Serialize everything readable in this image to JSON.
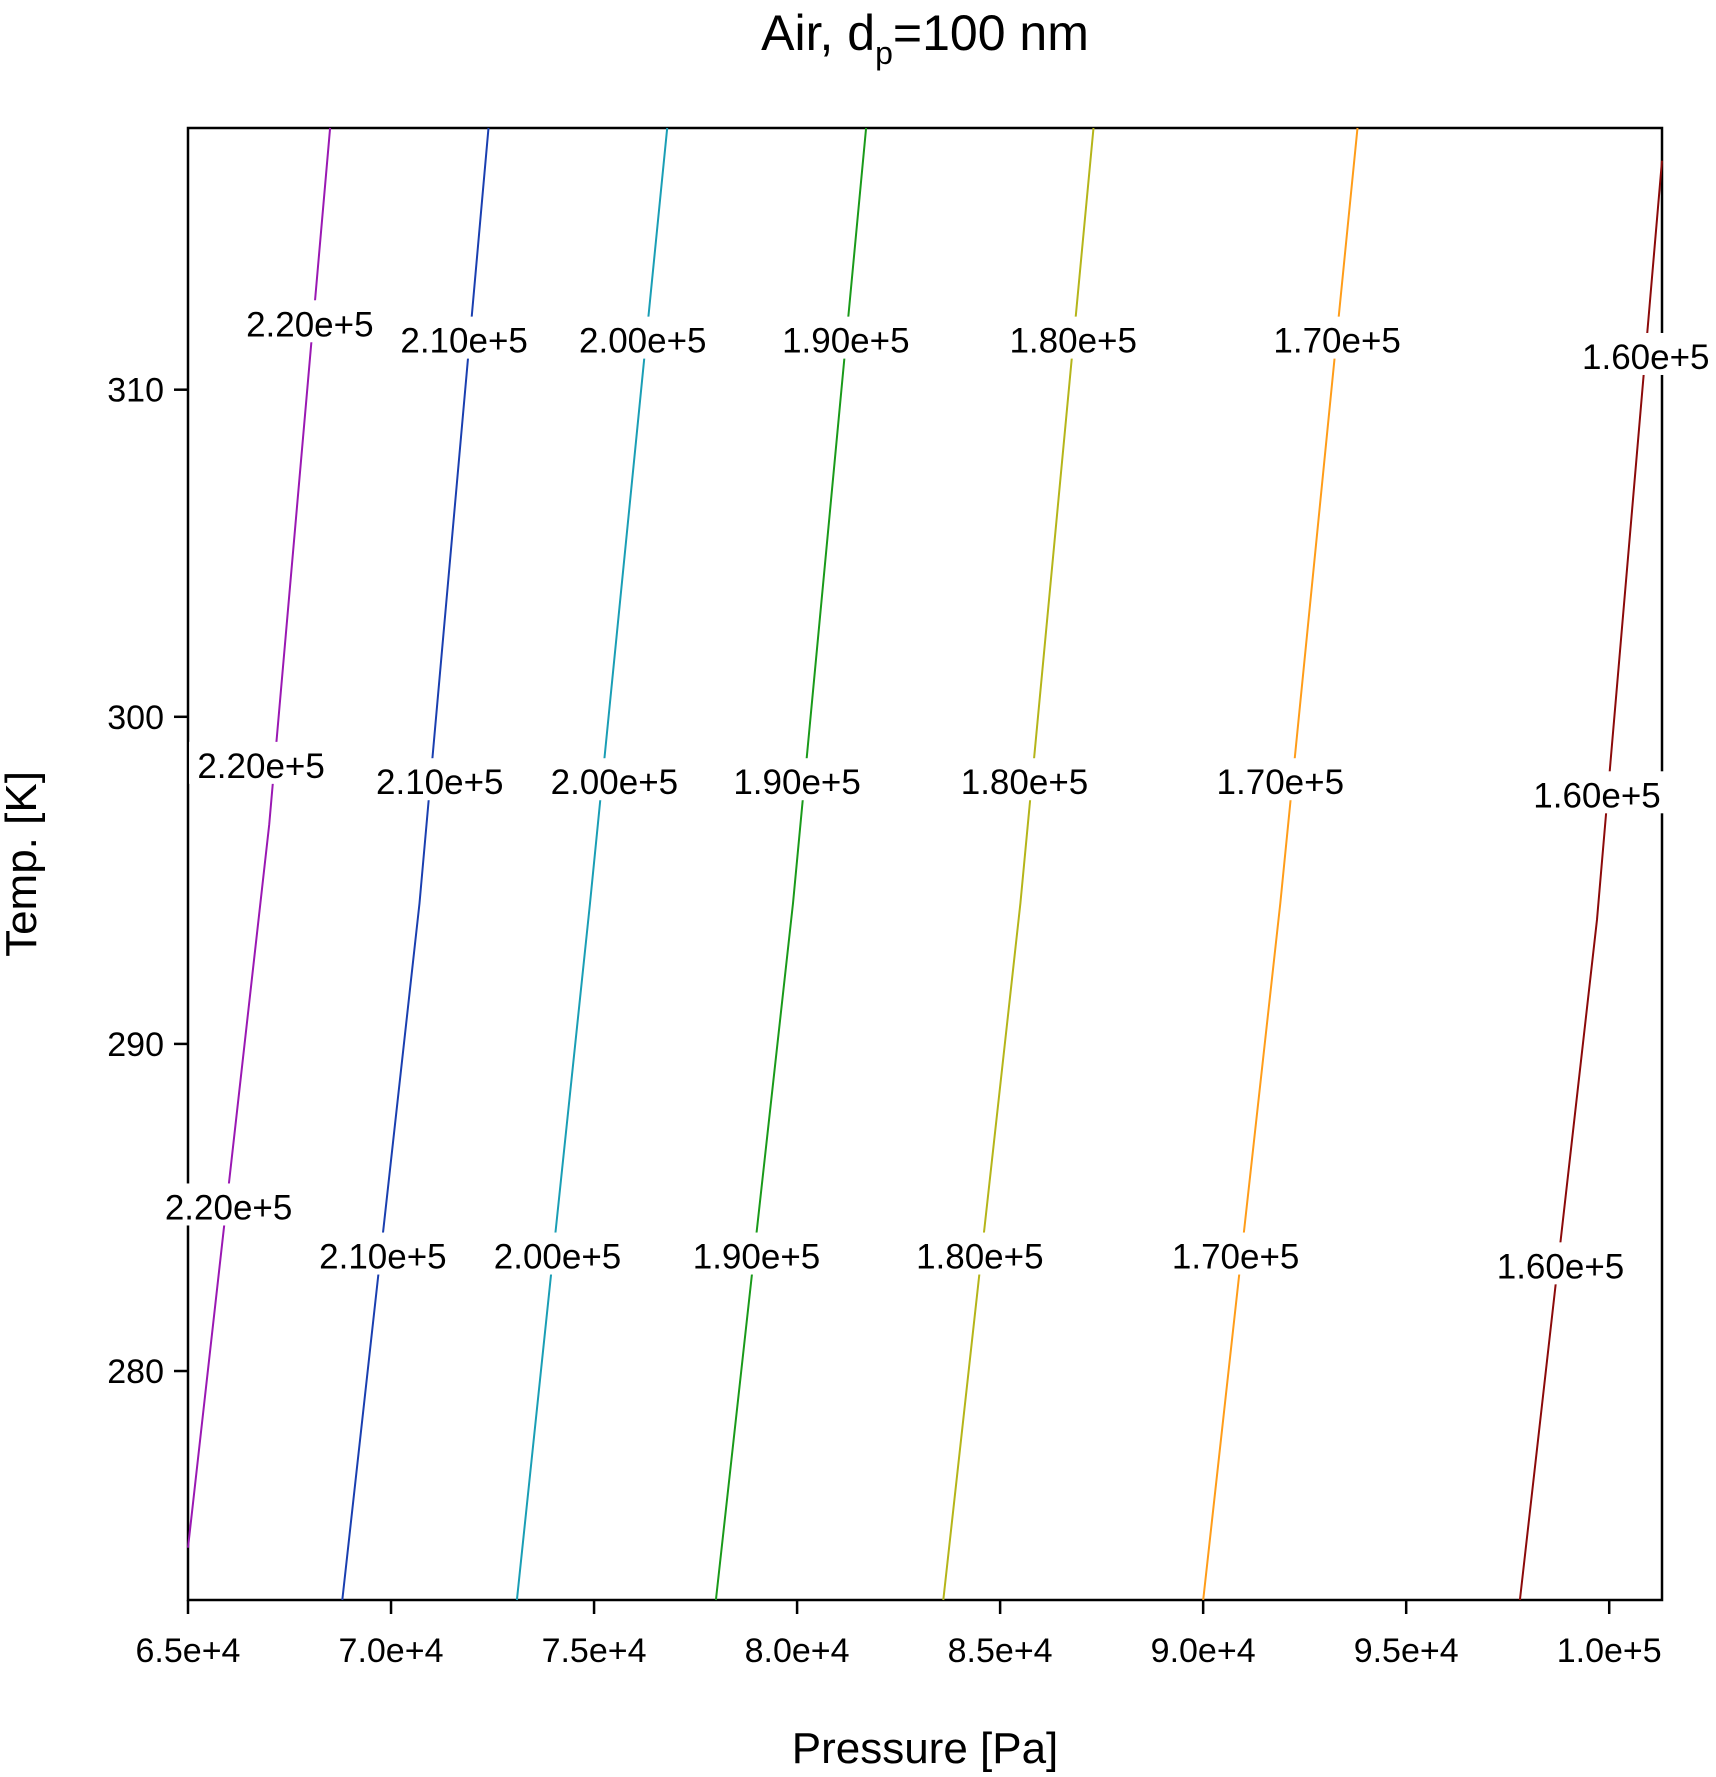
{
  "chart_data": {
    "type": "contour",
    "title": "Air, d",
    "title_subscript": "p",
    "title_suffix": "=100 nm",
    "xlabel": "Pressure [Pa]",
    "ylabel": "Temp. [K]",
    "xlim": [
      65000,
      101300
    ],
    "ylim": [
      273,
      318
    ],
    "xticks": [
      {
        "value": 65000,
        "label": "6.5e+4"
      },
      {
        "value": 70000,
        "label": "7.0e+4"
      },
      {
        "value": 75000,
        "label": "7.5e+4"
      },
      {
        "value": 80000,
        "label": "8.0e+4"
      },
      {
        "value": 85000,
        "label": "8.5e+4"
      },
      {
        "value": 90000,
        "label": "9.0e+4"
      },
      {
        "value": 95000,
        "label": "9.5e+4"
      },
      {
        "value": 100000,
        "label": "1.0e+5"
      }
    ],
    "yticks": [
      {
        "value": 280,
        "label": "280"
      },
      {
        "value": 290,
        "label": "290"
      },
      {
        "value": 300,
        "label": "300"
      },
      {
        "value": 310,
        "label": "310"
      }
    ],
    "grid": false,
    "series": [
      {
        "level": 220000,
        "label": "2.20e+5",
        "color": "#9a18b3",
        "points": [
          [
            65000,
            274.6
          ],
          [
            67000,
            296.7
          ],
          [
            68500,
            318
          ]
        ],
        "label_positions": [
          [
            66000,
            285
          ],
          [
            66800,
            298.5
          ],
          [
            68000,
            312
          ]
        ]
      },
      {
        "level": 210000,
        "label": "2.10e+5",
        "color": "#1a3fb0",
        "points": [
          [
            68800,
            273
          ],
          [
            70700,
            294.3
          ],
          [
            72400,
            318
          ]
        ],
        "label_positions": [
          [
            69800,
            283.5
          ],
          [
            71200,
            298
          ],
          [
            71800,
            311.5
          ]
        ]
      },
      {
        "level": 200000,
        "label": "2.00e+5",
        "color": "#1a9eb5",
        "points": [
          [
            73100,
            273
          ],
          [
            74900,
            294.3
          ],
          [
            76800,
            318
          ]
        ],
        "label_positions": [
          [
            74100,
            283.5
          ],
          [
            75500,
            298
          ],
          [
            76200,
            311.5
          ]
        ]
      },
      {
        "level": 190000,
        "label": "1.90e+5",
        "color": "#1a9a1a",
        "points": [
          [
            78000,
            273
          ],
          [
            79900,
            294.3
          ],
          [
            81700,
            318
          ]
        ],
        "label_positions": [
          [
            79000,
            283.5
          ],
          [
            80000,
            298
          ],
          [
            81200,
            311.5
          ]
        ]
      },
      {
        "level": 180000,
        "label": "1.80e+5",
        "color": "#b5b51a",
        "points": [
          [
            83600,
            273
          ],
          [
            85500,
            294.3
          ],
          [
            87300,
            318
          ]
        ],
        "label_positions": [
          [
            84500,
            283.5
          ],
          [
            85600,
            298
          ],
          [
            86800,
            311.5
          ]
        ]
      },
      {
        "level": 170000,
        "label": "1.70e+5",
        "color": "#ff9d1a",
        "points": [
          [
            90000,
            273
          ],
          [
            91900,
            294.3
          ],
          [
            93800,
            318
          ]
        ],
        "label_positions": [
          [
            90800,
            283.5
          ],
          [
            91900,
            298
          ],
          [
            93300,
            311.5
          ]
        ]
      },
      {
        "level": 160000,
        "label": "1.60e+5",
        "color": "#8b0a0a",
        "points": [
          [
            97800,
            273
          ],
          [
            99700,
            293.8
          ],
          [
            101300,
            317
          ]
        ],
        "label_positions": [
          [
            98800,
            283.2
          ],
          [
            99700,
            297.6
          ],
          [
            100900,
            311
          ]
        ]
      }
    ]
  }
}
